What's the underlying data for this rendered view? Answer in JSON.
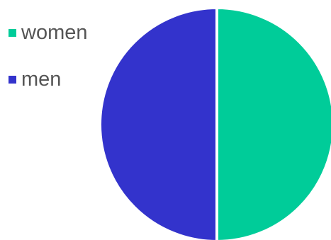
{
  "chart_data": {
    "type": "pie",
    "categories": [
      "women",
      "men"
    ],
    "values": [
      50,
      50
    ],
    "colors": [
      "#00CC99",
      "#3333CC"
    ],
    "legend_position": "top-left",
    "slice_border_color": "#ffffff"
  }
}
